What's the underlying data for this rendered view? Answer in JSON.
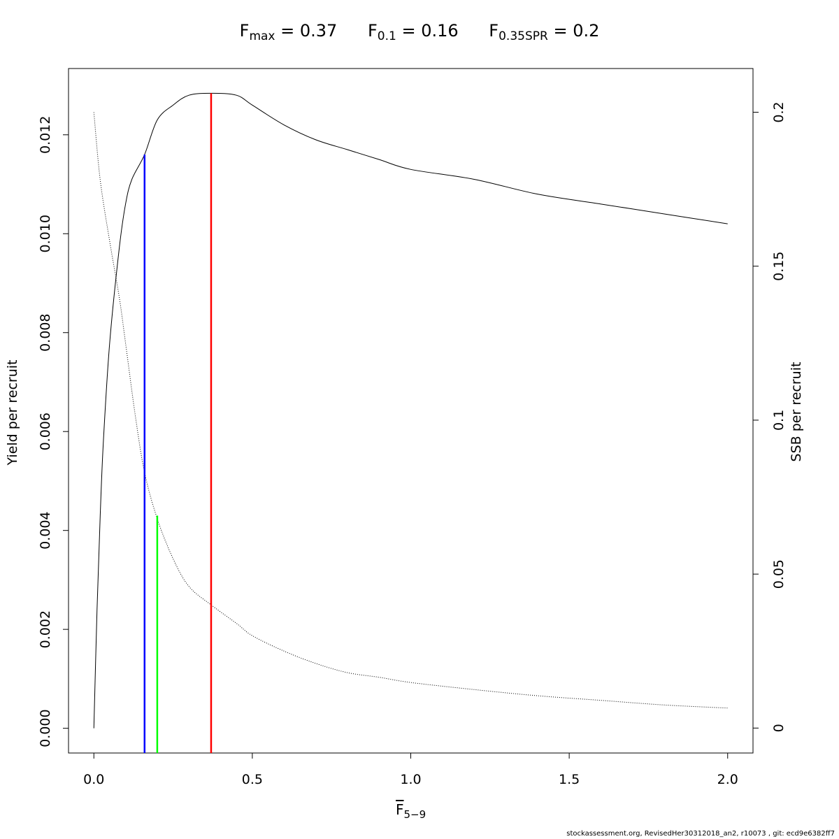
{
  "title": {
    "fmax": {
      "symbol": "F",
      "sub": "max",
      "value": "= 0.37"
    },
    "f01": {
      "symbol": "F",
      "sub": "0.1",
      "value": "= 0.16"
    },
    "fspr": {
      "symbol": "F",
      "sub": "0.35SPR",
      "value": "= 0.2"
    }
  },
  "xlabel": {
    "symbol": "F",
    "sub": "5−9"
  },
  "ylabel": "Yield per recruit",
  "y2label": "SSB per recruit",
  "footer": "stockassessment.org, RevisedHer30312018_an2, r10073 , git: ecd9e6382ff7",
  "chart_data": {
    "type": "line",
    "xlim": [
      -0.08,
      2.08
    ],
    "ylim": [
      -0.0005,
      0.01334
    ],
    "y2lim": [
      -0.0081,
      0.2142
    ],
    "x_ticks": [
      0.0,
      0.5,
      1.0,
      1.5,
      2.0
    ],
    "x_tick_labels": [
      "0.0",
      "0.5",
      "1.0",
      "1.5",
      "2.0"
    ],
    "y_ticks": [
      0.0,
      0.002,
      0.004,
      0.006,
      0.008,
      0.01,
      0.012
    ],
    "y_tick_labels": [
      "0.000",
      "0.002",
      "0.004",
      "0.006",
      "0.008",
      "0.010",
      "0.012"
    ],
    "y2_ticks": [
      0,
      0.05,
      0.1,
      0.15,
      0.2
    ],
    "y2_tick_labels": [
      "0",
      "0.05",
      "0.1",
      "0.15",
      "0.2"
    ],
    "grid": false,
    "series": [
      {
        "axis": "left",
        "color": "#000000",
        "style": "solid",
        "x": [
          0,
          0.01,
          0.02,
          0.03,
          0.05,
          0.08,
          0.1,
          0.12,
          0.16,
          0.2,
          0.25,
          0.3,
          0.37,
          0.45,
          0.5,
          0.6,
          0.7,
          0.8,
          0.9,
          1.0,
          1.2,
          1.4,
          1.6,
          1.8,
          2.0
        ],
        "y": [
          0,
          0.0024,
          0.0043,
          0.0058,
          0.0078,
          0.0097,
          0.0106,
          0.0111,
          0.0116,
          0.0123,
          0.0126,
          0.0128,
          0.01284,
          0.0128,
          0.0126,
          0.0122,
          0.0119,
          0.0117,
          0.0115,
          0.0113,
          0.0111,
          0.0108,
          0.0106,
          0.0104,
          0.0102
        ]
      },
      {
        "axis": "right",
        "color": "#000000",
        "style": "dotted",
        "x": [
          0,
          0.02,
          0.05,
          0.08,
          0.1,
          0.13,
          0.16,
          0.2,
          0.25,
          0.3,
          0.37,
          0.45,
          0.5,
          0.6,
          0.7,
          0.8,
          0.9,
          1.0,
          1.2,
          1.4,
          1.6,
          1.8,
          2.0
        ],
        "y": [
          0.2,
          0.178,
          0.158,
          0.14,
          0.125,
          0.102,
          0.083,
          0.068,
          0.055,
          0.046,
          0.04,
          0.034,
          0.03,
          0.025,
          0.021,
          0.018,
          0.0165,
          0.0148,
          0.0125,
          0.0105,
          0.009,
          0.0075,
          0.0065
        ]
      }
    ],
    "reference_lines": [
      {
        "name": "F0.1",
        "x": 0.16,
        "y_top": 0.0116,
        "color": "#0000ff"
      },
      {
        "name": "F0.35SPR",
        "x": 0.2,
        "y_top": 0.0043,
        "color": "#00ff00"
      },
      {
        "name": "Fmax",
        "x": 0.37,
        "y_top": 0.01284,
        "color": "#ff0000"
      }
    ]
  }
}
